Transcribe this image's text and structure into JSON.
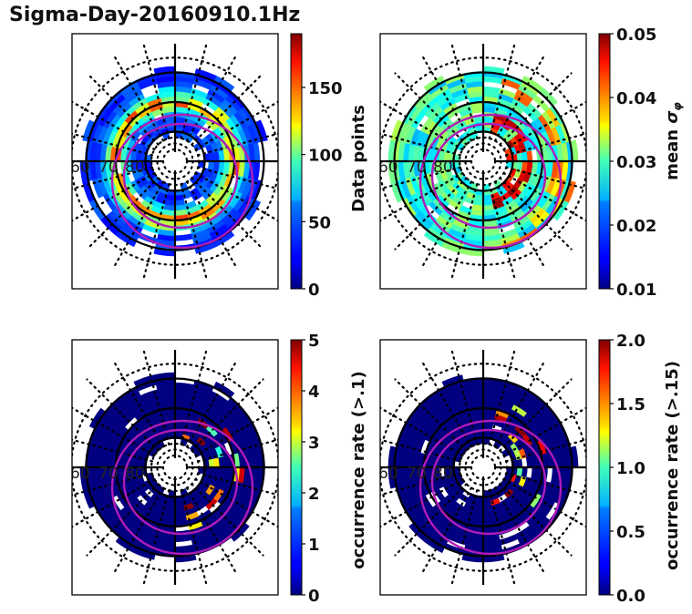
{
  "title": "Sigma-Day-20160910.1Hz",
  "chart_data": [
    {
      "type": "heatmap",
      "projection": "polar (magnetic latitude / MLT)",
      "panel": "top-left",
      "title": "",
      "latitude_labels": [
        "60",
        "70",
        "80"
      ],
      "latitude_circles_deg": [
        60,
        70,
        80
      ],
      "colorbar": {
        "label": "Data points",
        "range": [
          0,
          190
        ],
        "ticks": [
          0,
          50,
          100,
          150
        ],
        "tick_labels": [
          "0",
          "50",
          "100",
          "150"
        ],
        "colormap": "jet"
      },
      "overlay": "two magenta auroral oval boundaries",
      "data_description": "Ring of bins mostly 0-60 counts with a band of 80-150 near 65-75 deg latitude"
    },
    {
      "type": "heatmap",
      "projection": "polar (magnetic latitude / MLT)",
      "panel": "top-right",
      "title": "",
      "latitude_labels": [
        "60",
        "70",
        "80"
      ],
      "latitude_circles_deg": [
        60,
        70,
        80
      ],
      "colorbar": {
        "label": "mean σφ",
        "range": [
          0.01,
          0.05
        ],
        "ticks": [
          0.01,
          0.02,
          0.03,
          0.04,
          0.05
        ],
        "tick_labels": [
          "0.01",
          "0.02",
          "0.03",
          "0.04",
          "0.05"
        ],
        "colormap": "jet"
      },
      "overlay": "two magenta auroral oval boundaries",
      "data_description": "Values mostly 0.02-0.03; highs of 0.04-0.05 on the dusk/night side near 75-80 deg"
    },
    {
      "type": "heatmap",
      "projection": "polar (magnetic latitude / MLT)",
      "panel": "bottom-left",
      "title": "",
      "latitude_labels": [
        "60",
        "70",
        "80"
      ],
      "latitude_circles_deg": [
        60,
        70,
        80
      ],
      "colorbar": {
        "label": "occurrence rate (>.1)",
        "range": [
          0,
          5
        ],
        "ticks": [
          0,
          1,
          2,
          3,
          4,
          5
        ],
        "tick_labels": [
          "0",
          "1",
          "2",
          "3",
          "4",
          "5"
        ],
        "colormap": "jet"
      },
      "overlay": "two magenta auroral oval boundaries",
      "data_description": "Nearly all bins 0; scattered bins of 2-5 inside auroral oval on right side"
    },
    {
      "type": "heatmap",
      "projection": "polar (magnetic latitude / MLT)",
      "panel": "bottom-right",
      "title": "",
      "latitude_labels": [
        "60",
        "70",
        "80"
      ],
      "latitude_circles_deg": [
        60,
        70,
        80
      ],
      "colorbar": {
        "label": "occurrence rate (>.15)",
        "range": [
          0.0,
          2.0
        ],
        "ticks": [
          0.0,
          0.5,
          1.0,
          1.5,
          2.0
        ],
        "tick_labels": [
          "0.0",
          "0.5",
          "1.0",
          "1.5",
          "2.0"
        ],
        "colormap": "jet"
      },
      "overlay": "two magenta auroral oval boundaries",
      "data_description": "Nearly all bins 0; few bins of 0.5-2.0 inside auroral oval on right side"
    }
  ],
  "colors": {
    "oval": "#b01cb8",
    "grid": "#000000"
  }
}
